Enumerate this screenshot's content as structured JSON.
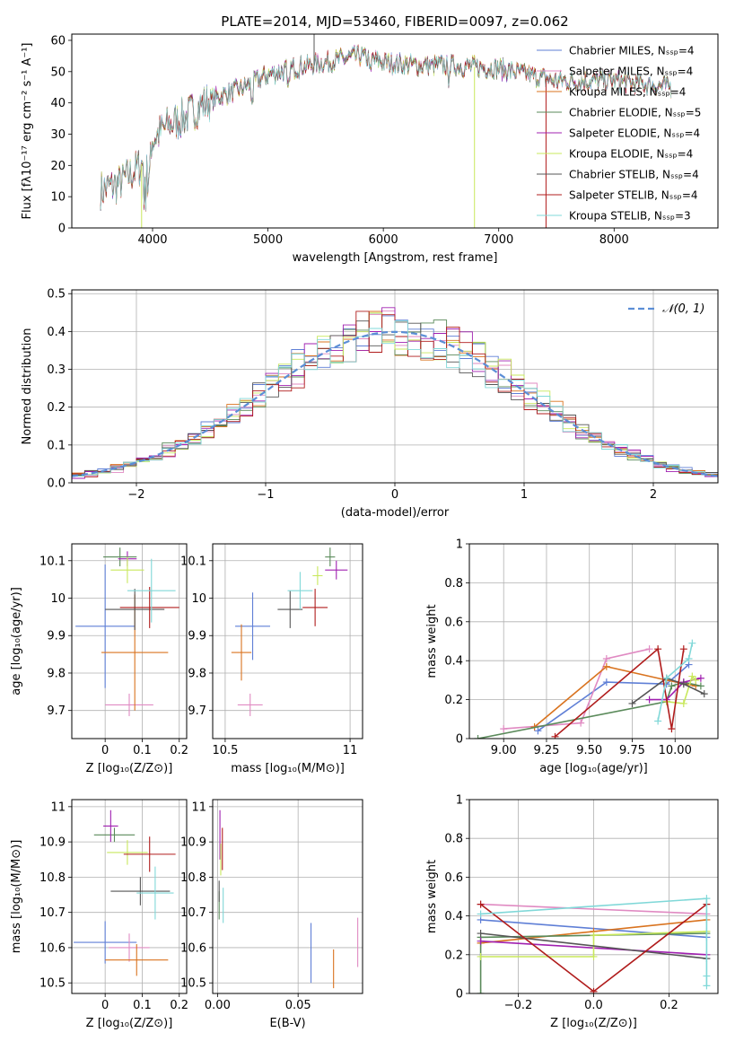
{
  "figure": {
    "title": "PLATE=2014, MJD=53460, FIBERID=0097, z=0.062"
  },
  "chart_data": [
    {
      "id": "spectrum",
      "type": "line",
      "xlabel": "wavelength [Angstrom, rest frame]",
      "ylabel": "Flux [fλ10⁻¹⁷ erg cm⁻² s⁻¹ A⁻¹]",
      "xlim": [
        3300,
        8900
      ],
      "ylim": [
        0,
        62
      ],
      "xticks": [
        4000,
        5000,
        6000,
        7000,
        8000
      ],
      "yticks": [
        0,
        10,
        20,
        30,
        40,
        50,
        60
      ],
      "grid": false,
      "legend_position": "upper right",
      "continuum": {
        "x": [
          3550,
          3700,
          3900,
          4000,
          4100,
          4300,
          4500,
          4800,
          5000,
          5200,
          5500,
          5800,
          6000,
          6300,
          6600,
          7000,
          7500,
          8000,
          8500
        ],
        "y": [
          12,
          14,
          20,
          28,
          32,
          36,
          41,
          45,
          49,
          51,
          53,
          55,
          53,
          52,
          52,
          51,
          47,
          47,
          45
        ]
      },
      "series": [
        {
          "name": "Chabrier MILES, N_SSP=4",
          "color": "#5f7fd6"
        },
        {
          "name": "Salpeter MILES, N_SSP=4",
          "color": "#e08ac2"
        },
        {
          "name": "Kroupa MILES, N_SSP=4",
          "color": "#d9731f"
        },
        {
          "name": "Chabrier ELODIE, N_SSP=5",
          "color": "#5a8a5a"
        },
        {
          "name": "Salpeter ELODIE, N_SSP=4",
          "color": "#a020b0"
        },
        {
          "name": "Kroupa ELODIE, N_SSP=4",
          "color": "#c8e85c"
        },
        {
          "name": "Chabrier STELIB, N_SSP=4",
          "color": "#555555"
        },
        {
          "name": "Salpeter STELIB, N_SSP=4",
          "color": "#b01c1c"
        },
        {
          "name": "Kroupa STELIB, N_SSP=3",
          "color": "#80d8d8"
        }
      ]
    },
    {
      "id": "residuals",
      "type": "line",
      "xlabel": "(data-model)/error",
      "ylabel": "Normed distribution",
      "xlim": [
        -2.5,
        2.5
      ],
      "ylim": [
        0,
        0.51
      ],
      "xticks": [
        -2,
        -1,
        0,
        1,
        2
      ],
      "xticklabels": [
        "−2",
        "−1",
        "0",
        "1",
        "2"
      ],
      "yticks": [
        0.0,
        0.1,
        0.2,
        0.3,
        0.4,
        0.5
      ],
      "grid": true,
      "legend_position": "upper right",
      "legend_label": "𝒩(0, 1)",
      "gaussian": {
        "mean": 0,
        "sigma": 1
      },
      "bin_width": 0.1
    },
    {
      "id": "age_vs_Z",
      "type": "scatter",
      "xlabel": "Z [log₁₀(Z/Z⊙)]",
      "ylabel": "age  [log₁₀(age/yr)]",
      "xlim": [
        -0.09,
        0.22
      ],
      "ylim": [
        9.625,
        10.145
      ],
      "xticks": [
        0.0,
        0.1,
        0.2
      ],
      "yticks": [
        9.7,
        9.8,
        9.9,
        10.0,
        10.1
      ],
      "grid": true,
      "points": [
        {
          "x": 0.0,
          "xerr": 0.08,
          "y": 9.925,
          "yerr": 0.165
        },
        {
          "x": 0.065,
          "xerr": 0.065,
          "y": 9.715,
          "yerr": 0.03
        },
        {
          "x": 0.08,
          "xerr": 0.09,
          "y": 9.855,
          "yerr": 0.155
        },
        {
          "x": 0.04,
          "xerr": 0.045,
          "y": 10.11,
          "yerr": 0.025
        },
        {
          "x": 0.06,
          "xerr": 0.025,
          "y": 10.105,
          "yerr": 0.02
        },
        {
          "x": 0.06,
          "xerr": 0.045,
          "y": 10.075,
          "yerr": 0.035
        },
        {
          "x": 0.08,
          "xerr": 0.08,
          "y": 9.97,
          "yerr": 0.055
        },
        {
          "x": 0.12,
          "xerr": 0.08,
          "y": 9.975,
          "yerr": 0.055
        },
        {
          "x": 0.125,
          "xerr": 0.065,
          "y": 10.02,
          "yerr": 0.085
        }
      ]
    },
    {
      "id": "age_vs_mass",
      "type": "scatter",
      "xlabel": "mass [log₁₀(M/M⊙)]",
      "ylabel": "",
      "xlim": [
        10.45,
        11.05
      ],
      "ylim": [
        9.625,
        10.145
      ],
      "xticks": [
        10.5,
        11.0
      ],
      "yticks": [
        9.7,
        9.8,
        9.9,
        10.0,
        10.1
      ],
      "grid": true,
      "points": [
        {
          "x": 10.61,
          "xerr": 0.07,
          "y": 9.925,
          "yerr": 0.09
        },
        {
          "x": 10.6,
          "xerr": 0.05,
          "y": 9.715,
          "yerr": 0.03
        },
        {
          "x": 10.565,
          "xerr": 0.04,
          "y": 9.855,
          "yerr": 0.075
        },
        {
          "x": 10.92,
          "xerr": 0.02,
          "y": 10.11,
          "yerr": 0.025
        },
        {
          "x": 10.945,
          "xerr": 0.045,
          "y": 10.075,
          "yerr": 0.025
        },
        {
          "x": 10.87,
          "xerr": 0.02,
          "y": 10.06,
          "yerr": 0.025
        },
        {
          "x": 10.76,
          "xerr": 0.05,
          "y": 9.97,
          "yerr": 0.05
        },
        {
          "x": 10.86,
          "xerr": 0.05,
          "y": 9.975,
          "yerr": 0.05
        },
        {
          "x": 10.8,
          "xerr": 0.05,
          "y": 10.02,
          "yerr": 0.05
        }
      ]
    },
    {
      "id": "weight_vs_age",
      "type": "line",
      "xlabel": "age  [log₁₀(age/yr)]",
      "ylabel": "mass weight",
      "xlim": [
        8.8,
        10.25
      ],
      "ylim": [
        0,
        1
      ],
      "xticks": [
        9.0,
        9.25,
        9.5,
        9.75,
        10.0
      ],
      "xticklabels": [
        "9.00",
        "9.25",
        "9.50",
        "9.75",
        "10.00"
      ],
      "yticks": [
        0.0,
        0.2,
        0.4,
        0.6,
        0.8,
        1.0
      ],
      "grid": true,
      "series": [
        {
          "x": [
            9.2,
            9.6,
            9.95,
            10.08
          ],
          "y": [
            0.04,
            0.29,
            0.28,
            0.38
          ]
        },
        {
          "x": [
            9.0,
            9.45,
            9.6,
            9.85
          ],
          "y": [
            0.05,
            0.08,
            0.41,
            0.46
          ]
        },
        {
          "x": [
            9.18,
            9.6,
            9.95,
            10.12
          ],
          "y": [
            0.06,
            0.37,
            0.3,
            0.27
          ]
        },
        {
          "x": [
            8.85,
            9.95,
            9.98,
            10.05,
            10.15
          ],
          "y": [
            0.0,
            0.19,
            0.27,
            0.29,
            0.27
          ]
        },
        {
          "x": [
            9.85,
            9.95,
            10.05,
            10.15
          ],
          "y": [
            0.2,
            0.2,
            0.29,
            0.31
          ]
        },
        {
          "x": [
            9.95,
            10.05,
            10.1,
            10.12
          ],
          "y": [
            0.19,
            0.18,
            0.32,
            0.3
          ]
        },
        {
          "x": [
            9.75,
            9.95,
            10.05,
            10.17
          ],
          "y": [
            0.18,
            0.31,
            0.28,
            0.23
          ]
        },
        {
          "x": [
            9.3,
            9.9,
            9.98,
            10.05
          ],
          "y": [
            0.01,
            0.46,
            0.05,
            0.46
          ]
        },
        {
          "x": [
            9.9,
            9.95,
            10.08,
            10.1
          ],
          "y": [
            0.09,
            0.31,
            0.41,
            0.49
          ]
        }
      ]
    },
    {
      "id": "mass_vs_Z",
      "type": "scatter",
      "xlabel": "Z [log₁₀(Z/Z⊙)]",
      "ylabel": "mass [log₁₀(M/M⊙)]",
      "xlim": [
        -0.09,
        0.22
      ],
      "ylim": [
        10.47,
        11.02
      ],
      "xticks": [
        0.0,
        0.1,
        0.2
      ],
      "yticks": [
        10.5,
        10.6,
        10.7,
        10.8,
        10.9,
        11.0
      ],
      "grid": true,
      "points": [
        {
          "x": 0.0,
          "xerr": 0.085,
          "y": 10.615,
          "yerr": 0.06
        },
        {
          "x": 0.065,
          "xerr": 0.055,
          "y": 10.6,
          "yerr": 0.04
        },
        {
          "x": 0.085,
          "xerr": 0.085,
          "y": 10.565,
          "yerr": 0.045
        },
        {
          "x": 0.025,
          "xerr": 0.055,
          "y": 10.92,
          "yerr": 0.02
        },
        {
          "x": 0.015,
          "xerr": 0.02,
          "y": 10.945,
          "yerr": 0.045
        },
        {
          "x": 0.06,
          "xerr": 0.055,
          "y": 10.87,
          "yerr": 0.035
        },
        {
          "x": 0.095,
          "xerr": 0.08,
          "y": 10.76,
          "yerr": 0.04
        },
        {
          "x": 0.12,
          "xerr": 0.07,
          "y": 10.865,
          "yerr": 0.05
        },
        {
          "x": 0.135,
          "xerr": 0.05,
          "y": 10.755,
          "yerr": 0.075
        }
      ]
    },
    {
      "id": "mass_vs_EBV",
      "type": "scatter",
      "xlabel": "E(B-V)",
      "ylabel": "",
      "xlim": [
        -0.003,
        0.09
      ],
      "ylim": [
        10.47,
        11.02
      ],
      "xticks": [
        0.0,
        0.05
      ],
      "xticklabels": [
        "0.00",
        "0.05"
      ],
      "yticks": [
        10.5,
        10.6,
        10.7,
        10.8,
        10.9,
        11.0
      ],
      "grid": true,
      "points": [
        {
          "x": 0.058,
          "y": 10.585,
          "yerr": 0.085
        },
        {
          "x": 0.087,
          "y": 10.615,
          "yerr": 0.07
        },
        {
          "x": 0.072,
          "y": 10.54,
          "yerr": 0.055
        },
        {
          "x": 0.001,
          "y": 10.72,
          "yerr": 0.04
        },
        {
          "x": 0.0015,
          "y": 10.92,
          "yerr": 0.07
        },
        {
          "x": 0.002,
          "y": 10.85,
          "yerr": 0.045
        },
        {
          "x": 0.001,
          "y": 10.76,
          "yerr": 0.03
        },
        {
          "x": 0.003,
          "y": 10.88,
          "yerr": 0.06
        },
        {
          "x": 0.0035,
          "y": 10.72,
          "yerr": 0.05
        }
      ]
    },
    {
      "id": "weight_vs_Z",
      "type": "line",
      "xlabel": "Z [log₁₀(Z/Z⊙)]",
      "ylabel": "mass weight",
      "xlim": [
        -0.33,
        0.33
      ],
      "ylim": [
        0,
        1
      ],
      "xticks": [
        -0.2,
        0.0,
        0.2
      ],
      "xticklabels": [
        "−0.2",
        "0.0",
        "0.2"
      ],
      "yticks": [
        0.0,
        0.2,
        0.4,
        0.6,
        0.8,
        1.0
      ],
      "grid": true,
      "series": [
        {
          "x": [
            -0.3,
            0.3
          ],
          "y": [
            0.38,
            0.29
          ]
        },
        {
          "x": [
            -0.3,
            0.3
          ],
          "y": [
            0.46,
            0.41
          ]
        },
        {
          "x": [
            -0.3,
            0.0,
            0.3
          ],
          "y": [
            0.26,
            0.32,
            0.38
          ]
        },
        {
          "x": [
            -0.3,
            -0.3,
            0.3
          ],
          "y": [
            0.0,
            0.29,
            0.31
          ]
        },
        {
          "x": [
            -0.3,
            0.3
          ],
          "y": [
            0.27,
            0.2
          ]
        },
        {
          "x": [
            -0.3,
            0.0,
            0.0,
            0.3
          ],
          "y": [
            0.19,
            0.19,
            0.3,
            0.32
          ]
        },
        {
          "x": [
            -0.3,
            0.3
          ],
          "y": [
            0.31,
            0.18
          ]
        },
        {
          "x": [
            -0.3,
            0.0,
            0.3
          ],
          "y": [
            0.46,
            0.01,
            0.46
          ]
        },
        {
          "x": [
            -0.3,
            0.3,
            0.3,
            0.3
          ],
          "y": [
            0.41,
            0.49,
            0.09,
            0.04
          ]
        }
      ]
    }
  ]
}
